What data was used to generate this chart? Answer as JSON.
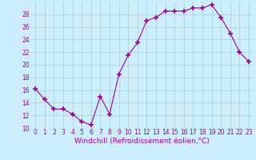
{
  "x": [
    0,
    1,
    2,
    3,
    4,
    5,
    6,
    7,
    8,
    9,
    10,
    11,
    12,
    13,
    14,
    15,
    16,
    17,
    18,
    19,
    20,
    21,
    22,
    23
  ],
  "y": [
    16.2,
    14.5,
    13.0,
    13.0,
    12.2,
    11.0,
    10.5,
    15.0,
    12.2,
    18.5,
    21.5,
    23.5,
    27.0,
    27.5,
    28.5,
    28.5,
    28.5,
    29.0,
    29.0,
    29.5,
    27.5,
    25.0,
    22.0,
    20.5
  ],
  "line_color": "#990099",
  "marker": "+",
  "marker_size": 4,
  "bg_color": "#cceeff",
  "grid_color": "#aacccc",
  "xlabel": "Windchill (Refroidissement éolien,°C)",
  "xlabel_color": "#990099",
  "ylim": [
    10,
    30
  ],
  "xlim": [
    -0.5,
    23.5
  ],
  "yticks": [
    10,
    12,
    14,
    16,
    18,
    20,
    22,
    24,
    26,
    28
  ],
  "xticks": [
    0,
    1,
    2,
    3,
    4,
    5,
    6,
    7,
    8,
    9,
    10,
    11,
    12,
    13,
    14,
    15,
    16,
    17,
    18,
    19,
    20,
    21,
    22,
    23
  ],
  "tick_color": "#990099",
  "tick_fontsize": 5.5,
  "xlabel_fontsize": 6.5
}
